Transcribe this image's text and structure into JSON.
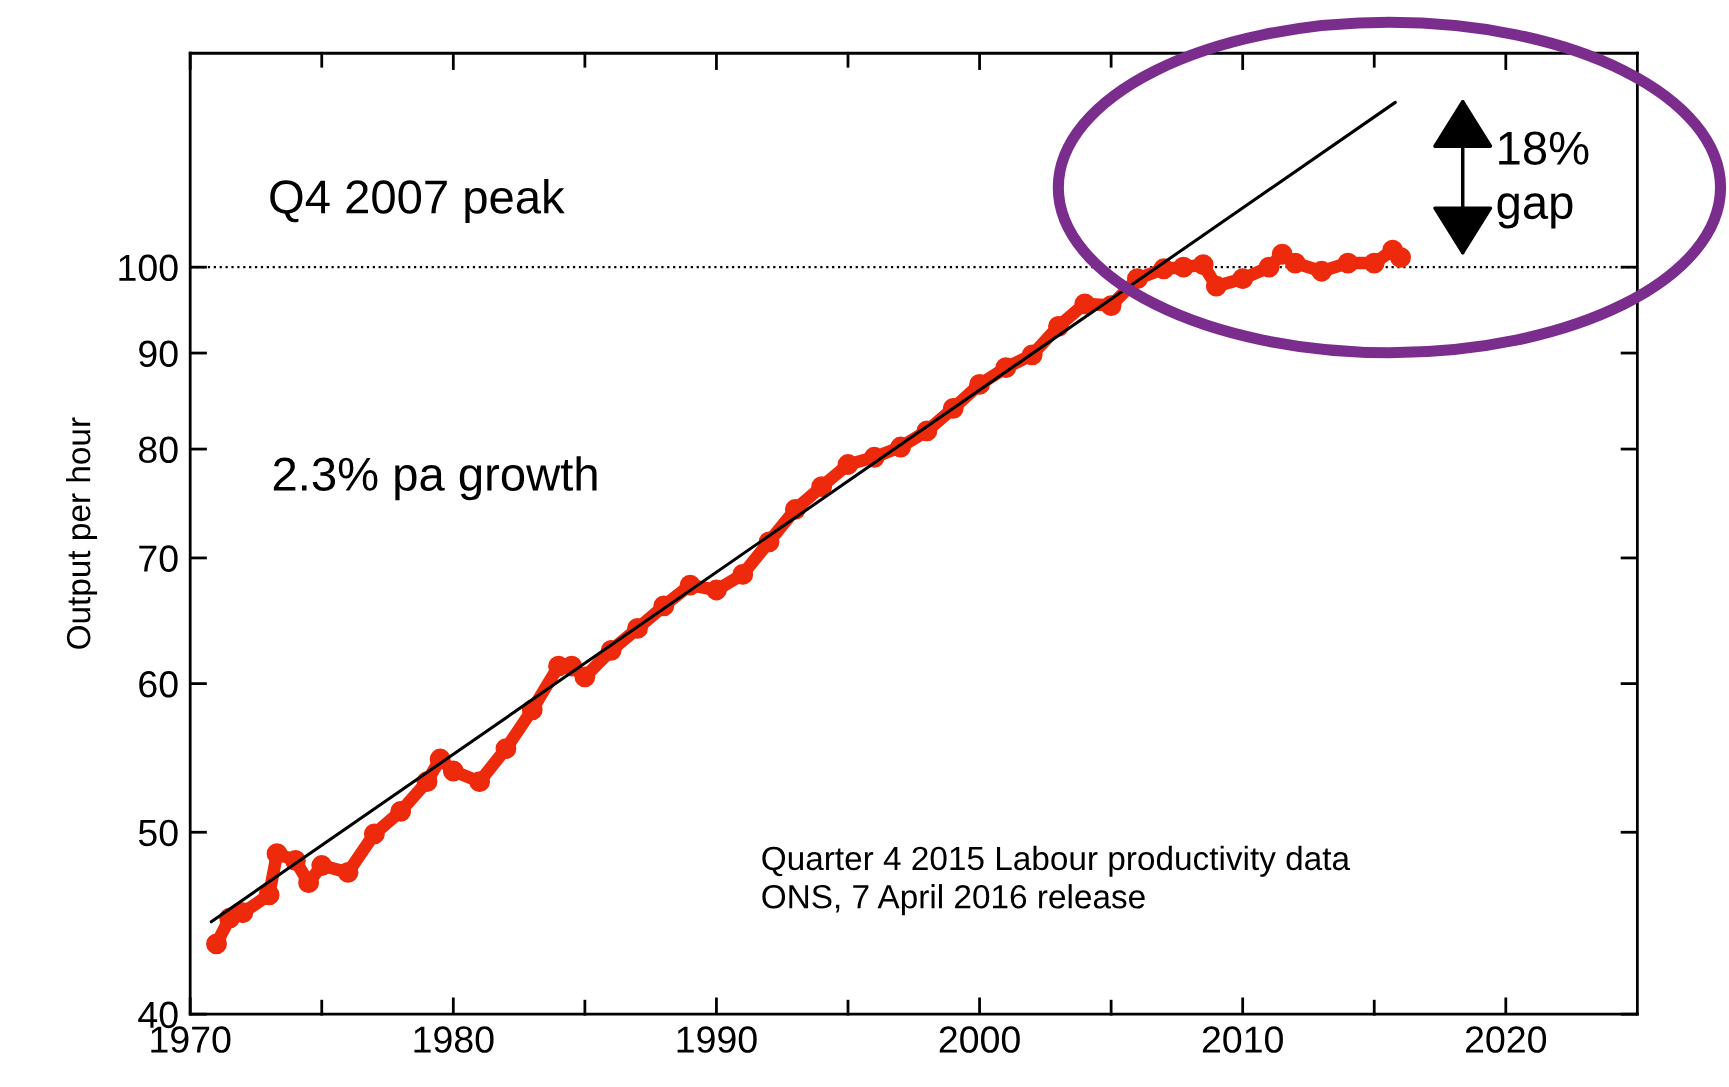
{
  "chart_data": {
    "type": "line",
    "ylabel": "Output per hour",
    "log": "y",
    "xlim": [
      1970,
      2025
    ],
    "ylim": [
      40,
      130
    ],
    "xticks": [
      1970,
      {
        "value": 1975,
        "label": null
      },
      1980,
      {
        "value": 1985,
        "label": null
      },
      1990,
      {
        "value": 1995,
        "label": null
      },
      2000,
      {
        "value": 2005,
        "label": null
      },
      2010,
      {
        "value": 2015,
        "label": null
      },
      2020
    ],
    "yticks": [
      40,
      50,
      60,
      70,
      80,
      90,
      100
    ],
    "grid": false,
    "legend": false,
    "series": [
      {
        "color": "#ee2a0c",
        "marker": "circle",
        "x": [
          1971,
          1971.5,
          1972,
          1973,
          1973.3,
          1974,
          1974.5,
          1975,
          1976,
          1977,
          1978,
          1979,
          1979.5,
          1980,
          1981,
          1982,
          1983,
          1984,
          1984.5,
          1985,
          1986,
          1987,
          1988,
          1989,
          1990,
          1991,
          1992,
          1993,
          1994,
          1995,
          1996,
          1997,
          1998,
          1999,
          2000,
          2001,
          2002,
          2003,
          2004,
          2005,
          2006,
          2007,
          2007.75,
          2008.5,
          2009,
          2010,
          2011,
          2011.5,
          2012,
          2013,
          2014,
          2015,
          2015.7,
          2016
        ],
        "values": [
          43.6,
          45.0,
          45.3,
          46.3,
          48.7,
          48.3,
          47.0,
          48.0,
          47.6,
          49.9,
          51.3,
          53.2,
          54.7,
          53.9,
          53.2,
          55.4,
          58.1,
          61.3,
          61.3,
          60.5,
          62.5,
          64.2,
          66.0,
          67.7,
          67.3,
          68.6,
          71.4,
          74.3,
          76.4,
          78.5,
          79.2,
          80.2,
          81.8,
          84.1,
          86.6,
          88.4,
          89.8,
          93.0,
          95.6,
          95.4,
          98.6,
          99.8,
          100,
          100.3,
          97.7,
          98.6,
          100,
          101.6,
          100.5,
          99.5,
          100.5,
          100.5,
          102.1,
          101.2
        ]
      },
      {
        "color": "#000000",
        "marker": "none",
        "x": [
          1970.8,
          2015.8
        ],
        "values": [
          44.8,
          122.4
        ]
      }
    ],
    "ref_lines": [
      {
        "axis": "y",
        "value": 100,
        "color": "#000000",
        "line_style": "dotted"
      }
    ],
    "annotations": [
      "Q4 2007 peak",
      "2.3% pa growth",
      "18%\ngap",
      "Quarter 4 2015 Labour productivity data\nONS, 7 April 2016 release"
    ]
  }
}
